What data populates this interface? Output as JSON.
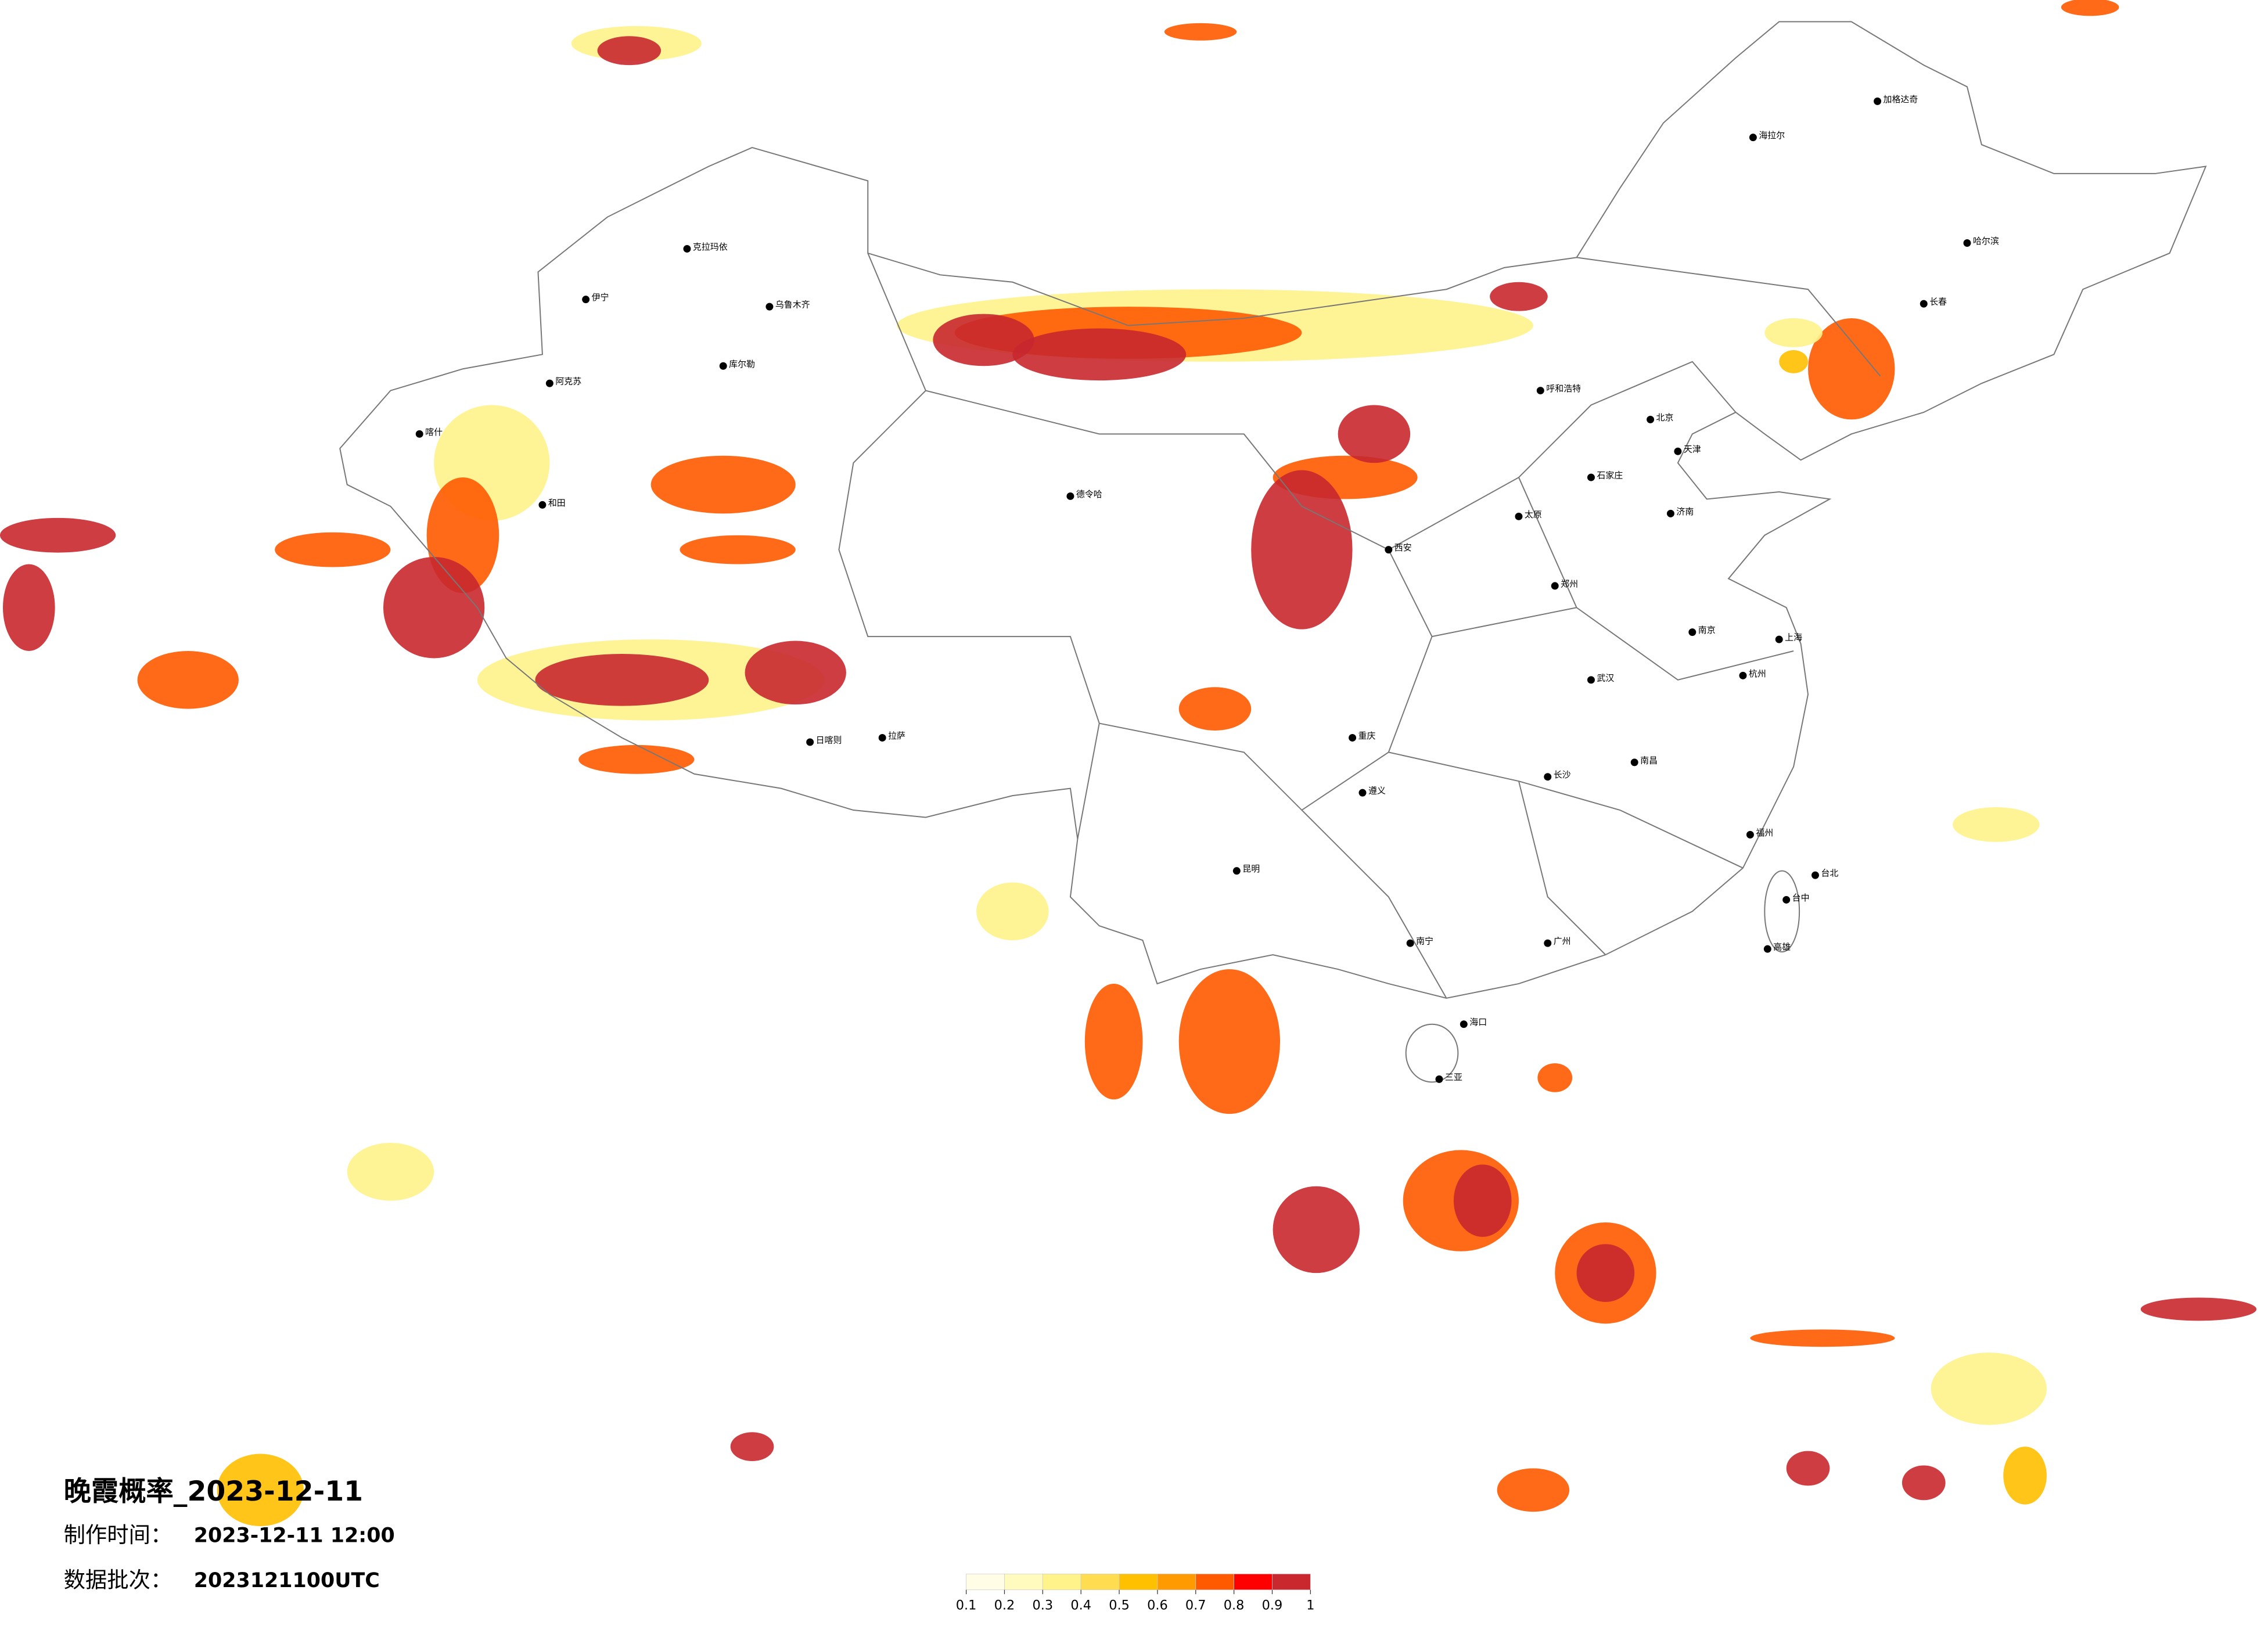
{
  "title": "晚霞概率_2023-12-11",
  "info": [
    {
      "label": "制作时间：",
      "value": "2023-12-11 12:00"
    },
    {
      "label": "数据批次：",
      "value": "2023121100UTC"
    }
  ],
  "legend": {
    "colors": [
      "#fffde6",
      "#fffbbf",
      "#fff38a",
      "#ffdc50",
      "#ffc000",
      "#ff9a00",
      "#ff5a00",
      "#ff0000",
      "#c8282e"
    ],
    "ticks": [
      0.1,
      0.2,
      0.3,
      0.4,
      0.5,
      0.6,
      0.7,
      0.8,
      0.9,
      1
    ]
  },
  "cities": [
    "克拉玛依",
    "伊宁",
    "乌鲁木齐",
    "库尔勒",
    "阿克苏",
    "喀什",
    "和田",
    "德令哈",
    "日喀则",
    "拉萨",
    "呼和浩特",
    "北京",
    "天津",
    "石家庄",
    "太原",
    "济南",
    "郑州",
    "西安",
    "武汉",
    "南京",
    "上海",
    "杭州",
    "长沙",
    "南昌",
    "福州",
    "广州",
    "南宁",
    "海口",
    "三亚",
    "昆明",
    "遵义",
    "重庆",
    "哈尔滨",
    "长春",
    "海拉尔",
    "加格达奇",
    "台北",
    "台中",
    "高雄"
  ]
}
